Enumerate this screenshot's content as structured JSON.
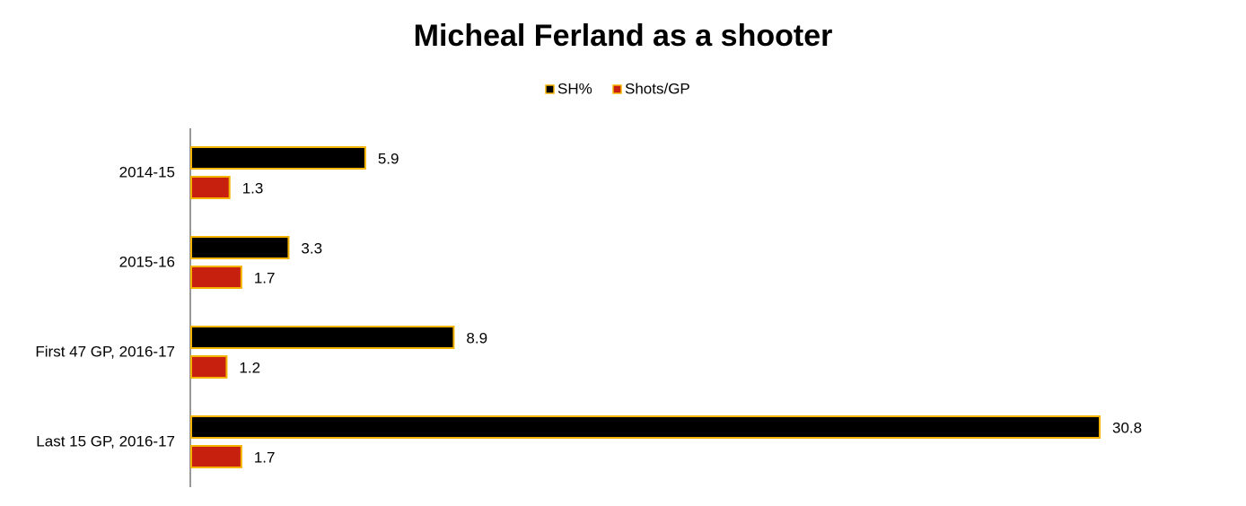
{
  "chart_data": {
    "type": "bar",
    "orientation": "horizontal",
    "title": "Micheal Ferland as a shooter",
    "categories": [
      "2014-15",
      "2015-16",
      "First 47 GP, 2016-17",
      "Last 15 GP, 2016-17"
    ],
    "series": [
      {
        "name": "SH%",
        "color": "#000000",
        "values": [
          5.9,
          3.3,
          8.9,
          30.8
        ]
      },
      {
        "name": "Shots/GP",
        "color": "#c8200e",
        "values": [
          1.3,
          1.7,
          1.2,
          1.7
        ]
      }
    ],
    "bar_edge_color": "#f5b400",
    "legend": "top",
    "grid": false
  }
}
